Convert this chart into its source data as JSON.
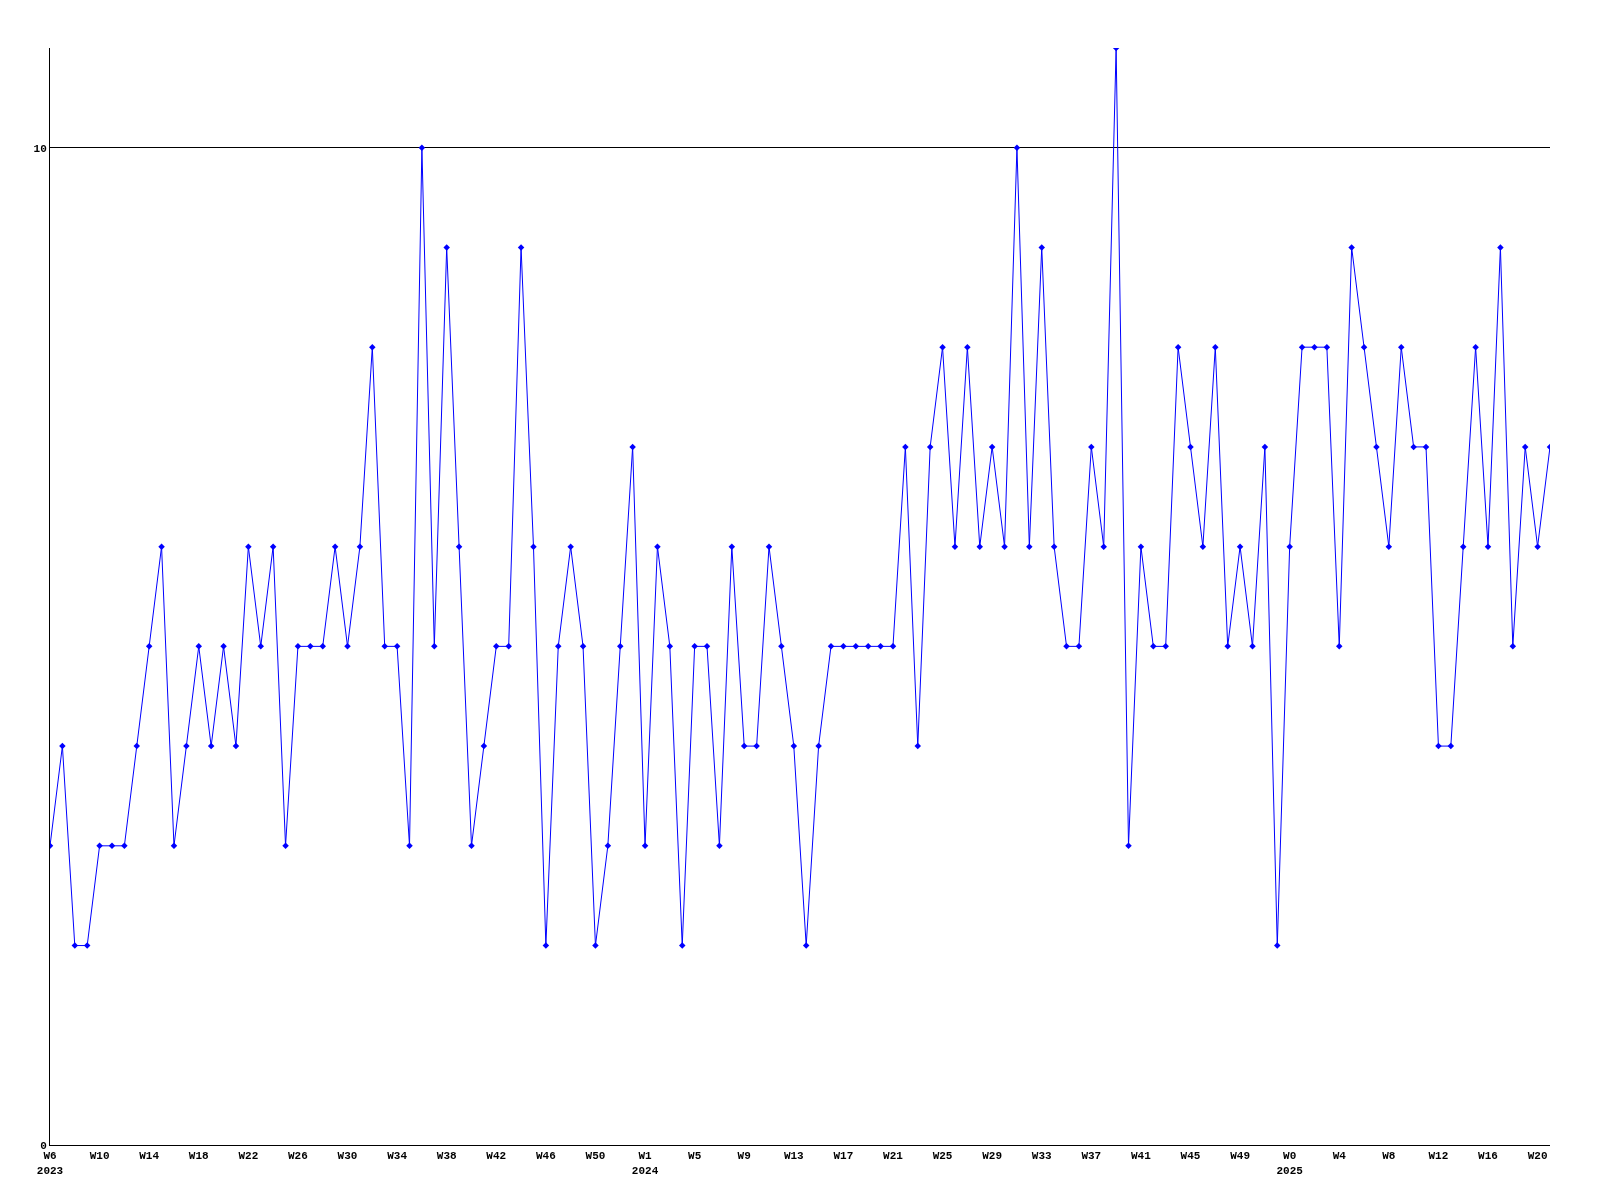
{
  "chart_data": {
    "type": "line",
    "categories": [
      "W6\n2023",
      null,
      null,
      null,
      "W10",
      null,
      null,
      null,
      "W14",
      null,
      null,
      null,
      "W18",
      null,
      null,
      null,
      "W22",
      null,
      null,
      null,
      "W26",
      null,
      null,
      null,
      "W30",
      null,
      null,
      null,
      "W34",
      null,
      null,
      null,
      "W38",
      null,
      null,
      null,
      "W42",
      null,
      null,
      null,
      "W46",
      null,
      null,
      null,
      "W50",
      null,
      null,
      null,
      "W1\n2024",
      null,
      null,
      null,
      "W5",
      null,
      null,
      null,
      "W9",
      null,
      null,
      null,
      "W13",
      null,
      null,
      null,
      "W17",
      null,
      null,
      null,
      "W21",
      null,
      null,
      null,
      "W25",
      null,
      null,
      null,
      "W29",
      null,
      null,
      null,
      "W33",
      null,
      null,
      null,
      "W37",
      null,
      null,
      null,
      "W41",
      null,
      null,
      null,
      "W45",
      null,
      null,
      null,
      "W49",
      null,
      null,
      null,
      "W0\n2025",
      null,
      null,
      null,
      "W4",
      null,
      null,
      null,
      "W8",
      null,
      null,
      null,
      "W12",
      null,
      null,
      null,
      "W16",
      null,
      null,
      null,
      "W20",
      null
    ],
    "series": [
      {
        "color": "#0000ff",
        "values": [
          3,
          4,
          2,
          2,
          3,
          3,
          3,
          4,
          5,
          6,
          3,
          4,
          5,
          4,
          5,
          4,
          6,
          5,
          6,
          3,
          5,
          5,
          5,
          6,
          5,
          6,
          8,
          5,
          5,
          3,
          10,
          5,
          9,
          6,
          3,
          4,
          5,
          5,
          9,
          6,
          2,
          5,
          6,
          5,
          2,
          3,
          5,
          7,
          3,
          6,
          5,
          2,
          5,
          5,
          3,
          6,
          4,
          4,
          6,
          5,
          4,
          2,
          4,
          5,
          5,
          5,
          5,
          5,
          5,
          7,
          4,
          7,
          8,
          6,
          8,
          6,
          7,
          6,
          10,
          6,
          9,
          6,
          5,
          5,
          7,
          6,
          11,
          3,
          6,
          5,
          5,
          8,
          7,
          6,
          8,
          5,
          6,
          5,
          7,
          2,
          6,
          8,
          8,
          8,
          5,
          9,
          8,
          7,
          6,
          8,
          7,
          7,
          4,
          4,
          6,
          8,
          6,
          9,
          5,
          7,
          6,
          7
        ]
      }
    ],
    "ylim": [
      0,
      11
    ],
    "yticks": [
      0,
      10
    ],
    "grid": "y",
    "marker": "diamond",
    "line_style": "solid"
  }
}
